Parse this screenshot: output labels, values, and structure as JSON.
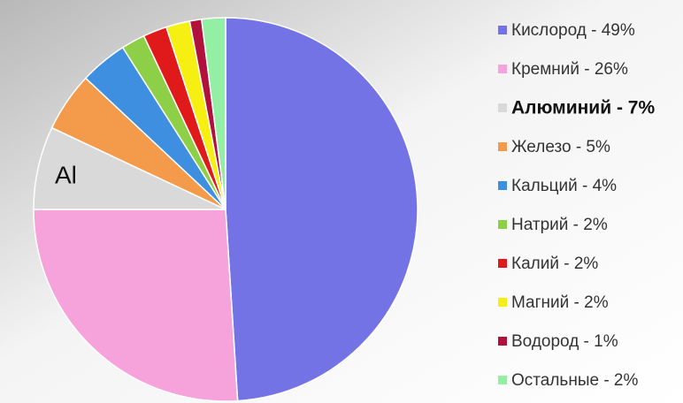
{
  "chart_data": {
    "type": "pie",
    "categories": [
      "Кислород - 49%",
      "Кремний - 26%",
      "Алюминий - 7%",
      "Железо - 5%",
      "Кальций - 4%",
      "Натрий - 2%",
      "Калий - 2%",
      "Магний - 2%",
      "Водород - 1%",
      "Остальные - 2%"
    ],
    "values": [
      49,
      26,
      7,
      5,
      4,
      2,
      2,
      2,
      1,
      2
    ],
    "colors": [
      "#7373e6",
      "#f5a3da",
      "#d9d9d9",
      "#f39b4b",
      "#3f8fe0",
      "#8dcf47",
      "#e01a1a",
      "#f5ef12",
      "#b0123c",
      "#93efa3"
    ],
    "annotation": "Al",
    "highlight": 2,
    "legend": "right"
  }
}
